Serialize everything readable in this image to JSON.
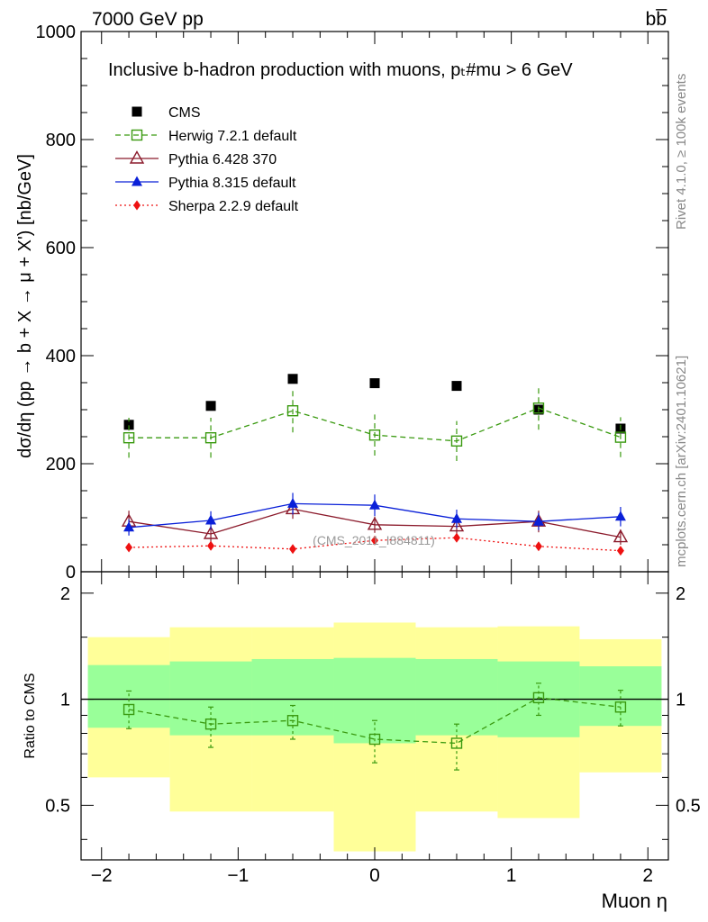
{
  "header": {
    "energy_label": "7000 GeV pp",
    "process_label": "bb̅"
  },
  "side_text": {
    "rivet": "Rivet 4.1.0, ≥ 100k events",
    "mcplots": "mcplots.cern.ch [arXiv:2401.10621]"
  },
  "watermark": "(CMS_2011_I884811)",
  "chart_data": [
    {
      "type": "scatter",
      "panel": "main",
      "title": "Inclusive b-hadron production with muons, pₜ#mu > 6 GeV",
      "xlabel": "Muon η",
      "ylabel": "dσ/dη (pp → b + X → μ + X') [nb/GeV]",
      "xlim": [
        -2.15,
        2.15
      ],
      "ylim": [
        0,
        1000
      ],
      "grid": false,
      "legend_position": "top-left",
      "y_ticks": [
        0,
        200,
        400,
        600,
        800,
        1000
      ],
      "y_tick_labels": [
        "0",
        "200",
        "400",
        "600",
        "800",
        "1000"
      ],
      "x": [
        -1.8,
        -1.2,
        -0.6,
        0.0,
        0.6,
        1.2,
        1.8
      ],
      "series": [
        {
          "name": "CMS",
          "color": "#000000",
          "marker": "square",
          "line": "none",
          "values": [
            272,
            307,
            357,
            349,
            344,
            300,
            265
          ],
          "errors": [
            0,
            0,
            0,
            0,
            0,
            0,
            0
          ]
        },
        {
          "name": "Herwig 7.2.1 default",
          "color": "#3a9a10",
          "marker": "open-square",
          "line": "dashed",
          "values": [
            248,
            248,
            298,
            253,
            242,
            303,
            249
          ],
          "errors": [
            37,
            37,
            40,
            38,
            37,
            40,
            37
          ]
        },
        {
          "name": "Pythia 6.428 370",
          "color": "#8b1a2b",
          "marker": "open-triangle",
          "line": "solid",
          "values": [
            93,
            70,
            116,
            87,
            84,
            93,
            64
          ],
          "errors": [
            20,
            15,
            18,
            15,
            15,
            20,
            14
          ]
        },
        {
          "name": "Pythia 8.315 default",
          "color": "#0a20d8",
          "marker": "triangle",
          "line": "solid",
          "values": [
            82,
            95,
            126,
            123,
            98,
            93,
            102
          ],
          "errors": [
            15,
            17,
            20,
            20,
            17,
            16,
            18
          ]
        },
        {
          "name": "Sherpa 2.2.9 default",
          "color": "#ee1111",
          "marker": "diamond",
          "line": "dotted",
          "values": [
            45,
            48,
            42,
            58,
            63,
            47,
            39
          ],
          "errors": [
            5,
            5,
            5,
            6,
            6,
            5,
            5
          ]
        }
      ]
    },
    {
      "type": "scatter",
      "panel": "ratio",
      "ylabel": "Ratio to CMS",
      "xlabel": "Muon η",
      "xlim": [
        -2.15,
        2.15
      ],
      "ylim": [
        0.35,
        2.3
      ],
      "y_scale": "log",
      "y_ticks": [
        0.5,
        1,
        2
      ],
      "y_tick_labels": [
        "0.5",
        "1",
        "2"
      ],
      "x_ticks": [
        -2,
        -1,
        0,
        1,
        2
      ],
      "x_tick_labels": [
        "−2",
        "−1",
        "0",
        "1",
        "2"
      ],
      "bands": {
        "bin_edges": [
          -2.1,
          -1.5,
          -0.9,
          -0.3,
          0.3,
          0.9,
          1.5,
          2.1
        ],
        "inner": {
          "color": "#99ff99",
          "low": [
            0.83,
            0.79,
            0.79,
            0.75,
            0.79,
            0.78,
            0.84
          ],
          "high": [
            1.25,
            1.28,
            1.3,
            1.31,
            1.3,
            1.28,
            1.24
          ]
        },
        "outer": {
          "color": "#ffff99",
          "low": [
            0.6,
            0.48,
            0.48,
            0.37,
            0.48,
            0.46,
            0.62
          ],
          "high": [
            1.5,
            1.6,
            1.6,
            1.65,
            1.6,
            1.61,
            1.48
          ]
        }
      },
      "reference_line": 1,
      "series": [
        {
          "name": "Herwig 7.2.1 default",
          "color": "#3a9a10",
          "marker": "open-square",
          "line": "dashed",
          "x": [
            -1.8,
            -1.2,
            -0.6,
            0.0,
            0.6,
            1.2,
            1.8
          ],
          "values": [
            0.935,
            0.85,
            0.87,
            0.77,
            0.75,
            1.01,
            0.95
          ],
          "err_low": [
            0.11,
            0.12,
            0.1,
            0.11,
            0.12,
            0.11,
            0.11
          ],
          "err_high": [
            0.12,
            0.1,
            0.09,
            0.1,
            0.1,
            0.1,
            0.11
          ]
        }
      ]
    }
  ]
}
